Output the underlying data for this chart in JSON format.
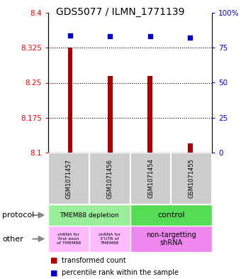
{
  "title": "GDS5077 / ILMN_1771139",
  "samples": [
    "GSM1071457",
    "GSM1071456",
    "GSM1071454",
    "GSM1071455"
  ],
  "transformed_counts": [
    8.325,
    8.265,
    8.265,
    8.12
  ],
  "percentile_ranks": [
    84,
    83,
    83,
    82
  ],
  "bar_color": "#aa0000",
  "dot_color": "#0000cc",
  "ylim_left": [
    8.1,
    8.4
  ],
  "ylim_right": [
    0,
    100
  ],
  "yticks_left": [
    8.1,
    8.175,
    8.25,
    8.325,
    8.4
  ],
  "yticks_right": [
    0,
    25,
    50,
    75,
    100
  ],
  "ytick_labels_left": [
    "8.1",
    "8.175",
    "8.25",
    "8.325",
    "8.4"
  ],
  "ytick_labels_right": [
    "0",
    "25",
    "50",
    "75",
    "100%"
  ],
  "bar_width": 0.12,
  "protocol_label1": "TMEM88 depletion",
  "protocol_label2": "control",
  "protocol_color1": "#99ee99",
  "protocol_color2": "#55dd55",
  "other_label1": "shRNA for\nfirst exon\nof TMEM88",
  "other_label2": "shRNA for\n3'UTR of\nTMEM88",
  "other_label3": "non-targetting\nshRNA",
  "other_color1": "#ffbbff",
  "other_color2": "#ffbbff",
  "other_color3": "#ee88ee",
  "legend_bar_color": "#aa0000",
  "legend_dot_color": "#0000cc",
  "legend_text1": "transformed count",
  "legend_text2": "percentile rank within the sample",
  "sample_box_color": "#cccccc",
  "row_label_protocol": "protocol",
  "row_label_other": "other"
}
